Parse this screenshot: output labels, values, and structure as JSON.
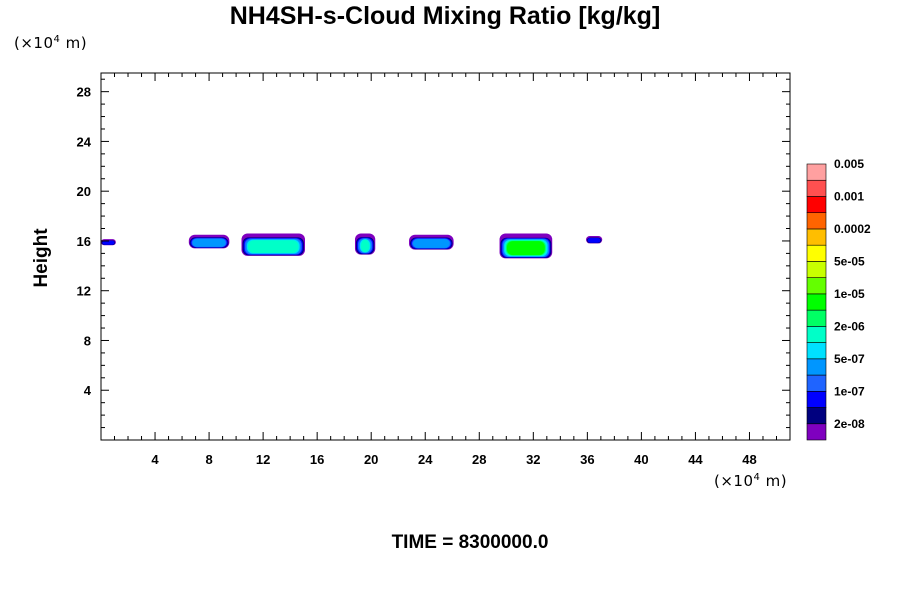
{
  "chart_data": {
    "type": "heatmap",
    "title": "NH4SH-s-Cloud Mixing Ratio [kg/kg]",
    "xunit": "(×10",
    "xunit_exp": "4",
    "xunit_tail": " m)",
    "yunit": "(×10",
    "yunit_exp": "4",
    "yunit_tail": " m)",
    "ylabel": "Height",
    "xlim": [
      0,
      51
    ],
    "ylim": [
      0,
      29.5
    ],
    "xticks": [
      4,
      8,
      12,
      16,
      20,
      24,
      28,
      32,
      36,
      40,
      44,
      48
    ],
    "yticks": [
      4,
      8,
      12,
      16,
      20,
      24,
      28
    ],
    "grid": false,
    "legend": {
      "position": "right",
      "colors": [
        "#7f00bf",
        "#00007f",
        "#0000ff",
        "#1f64ff",
        "#0096ff",
        "#00e1ff",
        "#00ffc8",
        "#00ff64",
        "#00ff00",
        "#64ff00",
        "#c8ff00",
        "#ffff00",
        "#ffbe00",
        "#ff6400",
        "#ff0000",
        "#ff5050",
        "#ffa0a0"
      ],
      "labels": [
        "2e-08",
        "1e-07",
        "5e-07",
        "2e-06",
        "1e-05",
        "5e-05",
        "0.0002",
        "0.001",
        "0.005"
      ]
    },
    "clouds": [
      {
        "x0": 0.0,
        "x1": 1.1,
        "y_bottom": 15.65,
        "y_top": 16.15,
        "peak": "1e-07"
      },
      {
        "x0": 6.5,
        "x1": 9.5,
        "y_bottom": 15.4,
        "y_top": 16.5,
        "peak": "5e-07"
      },
      {
        "x0": 10.4,
        "x1": 15.1,
        "y_bottom": 14.8,
        "y_top": 16.6,
        "peak": "2e-06"
      },
      {
        "x0": 18.8,
        "x1": 20.3,
        "y_bottom": 14.9,
        "y_top": 16.6,
        "peak": "2e-06"
      },
      {
        "x0": 22.8,
        "x1": 26.1,
        "y_bottom": 15.3,
        "y_top": 16.5,
        "peak": "5e-07"
      },
      {
        "x0": 29.5,
        "x1": 33.4,
        "y_bottom": 14.6,
        "y_top": 16.6,
        "peak": "1e-05"
      },
      {
        "x0": 35.9,
        "x1": 37.1,
        "y_bottom": 15.8,
        "y_top": 16.4,
        "peak": "1e-07"
      }
    ]
  },
  "footer": "TIME = 8300000.0"
}
